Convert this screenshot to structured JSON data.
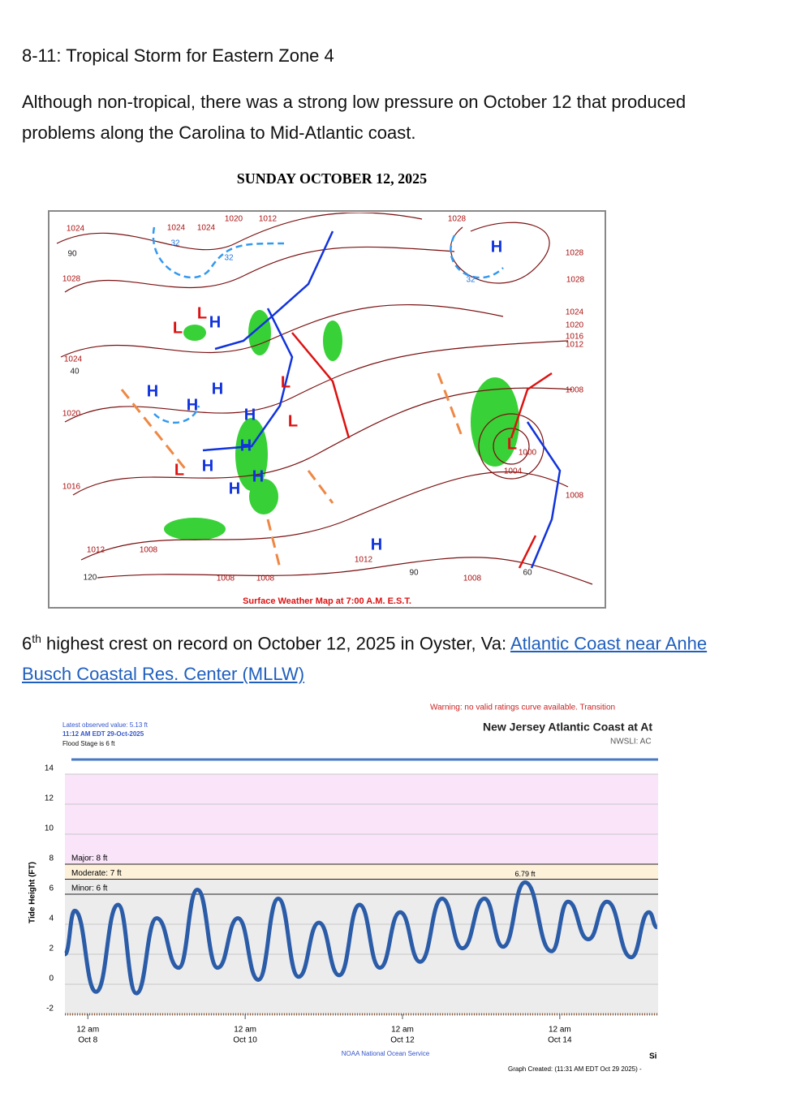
{
  "header": {
    "title": "8-11: Tropical Storm for Eastern Zone 4"
  },
  "paragraph": {
    "line1": "Although non-tropical, there was a strong low pressure on October 12 that produced",
    "line2": "problems along the Carolina to Mid-Atlantic coast."
  },
  "map": {
    "title": "SUNDAY OCTOBER 12, 2025",
    "caption": "Surface Weather Map at 7:00 A.M. E.S.T.",
    "isobar_labels": [
      "1024",
      "1028",
      "1024",
      "1020",
      "1016",
      "1012",
      "1008",
      "1020",
      "1012",
      "1028",
      "1028",
      "1028",
      "1024",
      "1020",
      "1016",
      "1012",
      "1008",
      "1008",
      "1008",
      "1004",
      "1000",
      "1012",
      "1008",
      "1008",
      "1024",
      "1024"
    ],
    "temperature_labels": [
      "90",
      "40",
      "120",
      "90",
      "60",
      "32",
      "32",
      "32"
    ],
    "highs": [
      "H",
      "H",
      "H",
      "H",
      "H",
      "H",
      "H",
      "H",
      "H",
      "H",
      "H"
    ],
    "lows": [
      "L",
      "L",
      "L",
      "L",
      "L",
      "L"
    ]
  },
  "crest": {
    "number": "6",
    "suffix": "th",
    "text": " highest crest on record on October 12, 2025 in Oyster, Va: ",
    "link_line1": "Atlantic Coast near Anhe",
    "link_line2": "Busch Coastal Res. Center (MLLW)"
  },
  "hydrograph": {
    "warning": "Warning: no valid ratings curve available. Transition",
    "title": "New Jersey Atlantic Coast at At",
    "nwsli": "NWSLI: AC",
    "latest_value": "Latest observed value: 5.13 ft",
    "latest_time": "11:12 AM EDT 29-Oct-2025",
    "flood_stage": "Flood Stage is 6 ft",
    "y_label": "Tide Height (FT)",
    "footer": "NOAA National Ocean Service",
    "footer_right": "Si",
    "created": "Graph Created: (11:31 AM EDT Oct 29 2025) -",
    "chart_data": {
      "type": "line",
      "x": [
        -7,
        -4,
        2.5,
        9.2,
        14.8,
        21,
        27.7,
        33.4,
        39.6,
        45.8,
        52,
        58.1,
        64.3,
        70.5,
        76.7,
        82.9,
        89.1,
        95.3,
        101.4,
        108.1,
        114.3,
        121,
        126.7,
        133.4,
        141.5,
        146.5,
        152.7,
        158.4,
        165.8,
        171.2,
        173.7
      ],
      "values": [
        2,
        4.9,
        -0.5,
        5.3,
        -0.6,
        4.4,
        1.1,
        6.3,
        1.1,
        4.4,
        0.3,
        5.7,
        0.5,
        4.1,
        0.6,
        5.3,
        1.1,
        4.8,
        1.5,
        5.7,
        2.4,
        5.7,
        2.5,
        6.79,
        2.2,
        5.5,
        3,
        5.5,
        1.8,
        4.8,
        3.8
      ],
      "color": "#2b5ca8",
      "xlim": [
        -7,
        174
      ],
      "ylim": [
        -2,
        14
      ],
      "yticks": [
        -2,
        0,
        2,
        4,
        6,
        8,
        10,
        12,
        14
      ],
      "xticks": [
        {
          "value": 0,
          "label": "12 am",
          "date": "Oct 8"
        },
        {
          "value": 48,
          "label": "12 am",
          "date": "Oct 10"
        },
        {
          "value": 96,
          "label": "12 am",
          "date": "Oct 12"
        },
        {
          "value": 144,
          "label": "12 am",
          "date": "Oct 14"
        }
      ],
      "flood_levels": [
        {
          "value": 8,
          "label": "Major: 8 ft",
          "color": "#fde6dc"
        },
        {
          "value": 7,
          "label": "Moderate: 7 ft",
          "color": "#fdf1da"
        },
        {
          "value": 6,
          "label": "Minor: 6 ft",
          "color": "#ececec"
        }
      ],
      "annotation": {
        "x": 133.4,
        "value": 6.79,
        "label": "6.79 ft"
      }
    }
  }
}
